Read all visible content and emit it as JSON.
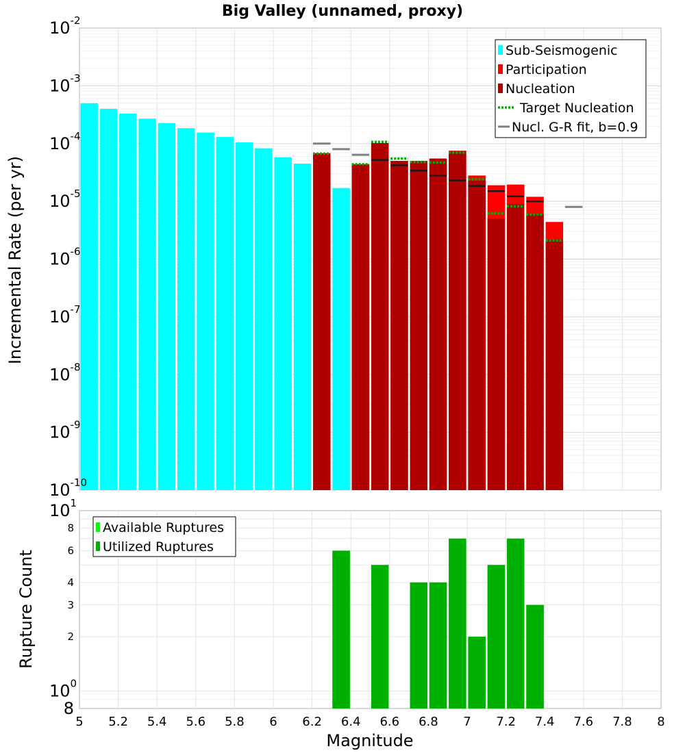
{
  "chart_data": [
    {
      "type": "bar",
      "title": "Big Valley (unnamed, proxy)",
      "ylabel": "Incremental Rate (per yr)",
      "xlabel": "",
      "ylim": [
        1e-10,
        0.01
      ],
      "xlim": [
        5,
        8
      ],
      "y_scale": "log",
      "y_ticks": [
        {
          "base": "10",
          "exp": "-10"
        },
        {
          "base": "10",
          "exp": "-9"
        },
        {
          "base": "10",
          "exp": "-8"
        },
        {
          "base": "10",
          "exp": "-7"
        },
        {
          "base": "10",
          "exp": "-6"
        },
        {
          "base": "10",
          "exp": "-5"
        },
        {
          "base": "10",
          "exp": "-4"
        },
        {
          "base": "10",
          "exp": "-3"
        },
        {
          "base": "10",
          "exp": "-2"
        }
      ],
      "legend": [
        {
          "label": "Sub-Seismogenic",
          "color": "#00ffff",
          "kind": "bar"
        },
        {
          "label": "Participation",
          "color": "#ff0000",
          "kind": "bar"
        },
        {
          "label": "Nucleation",
          "color": "#b00000",
          "kind": "bar"
        },
        {
          "label": "Target Nucleation",
          "color": "#00b000",
          "kind": "dotted"
        },
        {
          "label": "Nucl. G-R fit, b=0.9",
          "color": "#808080",
          "kind": "line"
        }
      ],
      "series": [
        {
          "name": "Sub-Seismogenic",
          "color": "#00ffff",
          "x": [
            5.05,
            5.15,
            5.25,
            5.35,
            5.45,
            5.55,
            5.65,
            5.75,
            5.85,
            5.95,
            6.05,
            6.15,
            6.35
          ],
          "values": [
            0.0005,
            0.0004,
            0.00033,
            0.00027,
            0.000225,
            0.000185,
            0.000155,
            0.00013,
            0.000105,
            8.3e-05,
            5.8e-05,
            4.5e-05,
            1.7e-05
          ]
        },
        {
          "name": "Participation",
          "color": "#ff0000",
          "x": [
            6.25,
            6.45,
            6.55,
            6.65,
            6.75,
            6.85,
            6.95,
            7.05,
            7.15,
            7.25,
            7.35,
            7.45
          ],
          "values": [
            6.8e-05,
            4.4e-05,
            0.000102,
            5e-05,
            5e-05,
            5.5e-05,
            7.5e-05,
            2.8e-05,
            1.9e-05,
            1.95e-05,
            1.2e-05,
            4.4e-06
          ]
        },
        {
          "name": "Nucleation",
          "color": "#b00000",
          "x": [
            6.25,
            6.45,
            6.55,
            6.65,
            6.75,
            6.85,
            6.95,
            7.05,
            7.15,
            7.25,
            7.35,
            7.45
          ],
          "values": [
            6.8e-05,
            4.4e-05,
            0.000102,
            5e-05,
            5e-05,
            5.5e-05,
            7.5e-05,
            2.3e-05,
            5e-06,
            9e-06,
            6e-06,
            2.2e-06
          ]
        },
        {
          "name": "Target Nucleation",
          "color": "#00b000",
          "x": [
            6.25,
            6.45,
            6.55,
            6.65,
            6.75,
            6.85,
            6.95,
            7.05,
            7.15,
            7.25,
            7.35,
            7.45
          ],
          "values": [
            6.7e-05,
            4.4e-05,
            0.000107,
            5.5e-05,
            4.8e-05,
            4.7e-05,
            7e-05,
            2.4e-05,
            6.2e-06,
            8.2e-06,
            5.9e-06,
            2.1e-06
          ]
        },
        {
          "name": "Nucleation (black ticks)",
          "color": "#1a1a1a",
          "x": [
            6.55,
            6.65,
            6.75,
            6.85,
            6.95,
            7.05,
            7.15,
            7.25,
            7.35
          ],
          "values": [
            5.2e-05,
            4.2e-05,
            3.4e-05,
            2.8e-05,
            2.3e-05,
            1.85e-05,
            1.5e-05,
            1.22e-05,
            1e-05
          ]
        },
        {
          "name": "Nucl. G-R fit, b=0.9",
          "color": "#808080",
          "x": [
            6.25,
            6.35,
            6.45,
            7.55
          ],
          "values": [
            0.0001,
            8e-05,
            6.4e-05,
            8e-06
          ]
        }
      ]
    },
    {
      "type": "bar",
      "title": "",
      "ylabel": "Rupture Count",
      "xlabel": "Magnitude",
      "ylim": [
        0.8,
        10
      ],
      "xlim": [
        5,
        8
      ],
      "y_scale": "log",
      "y_major_ticks": [
        {
          "base": "10",
          "exp": "0"
        },
        {
          "base": "10",
          "exp": "1"
        }
      ],
      "y_minor_ticks": [
        "2",
        "3",
        "4",
        "6",
        "8"
      ],
      "y_bottom_label": "8",
      "x_ticks": [
        "5",
        "5.2",
        "5.4",
        "5.6",
        "5.8",
        "6",
        "6.2",
        "6.4",
        "6.6",
        "6.8",
        "7",
        "7.2",
        "7.4",
        "7.6",
        "7.8",
        "8"
      ],
      "legend": [
        {
          "label": "Available Ruptures",
          "color": "#00ff00"
        },
        {
          "label": "Utilized Ruptures",
          "color": "#00b000"
        }
      ],
      "series": [
        {
          "name": "Available Ruptures",
          "color": "#00ff00",
          "x": [
            6.35,
            6.55,
            6.75,
            6.85,
            6.95,
            7.05,
            7.15,
            7.25,
            7.35
          ],
          "values": [
            6,
            5,
            4,
            4,
            7,
            2,
            5,
            7,
            3
          ]
        },
        {
          "name": "Utilized Ruptures",
          "color": "#00b000",
          "x": [
            6.35,
            6.55,
            6.75,
            6.85,
            6.95,
            7.05,
            7.15,
            7.25,
            7.35
          ],
          "values": [
            6,
            5,
            4,
            4,
            7,
            2,
            5,
            7,
            3
          ]
        }
      ]
    }
  ]
}
